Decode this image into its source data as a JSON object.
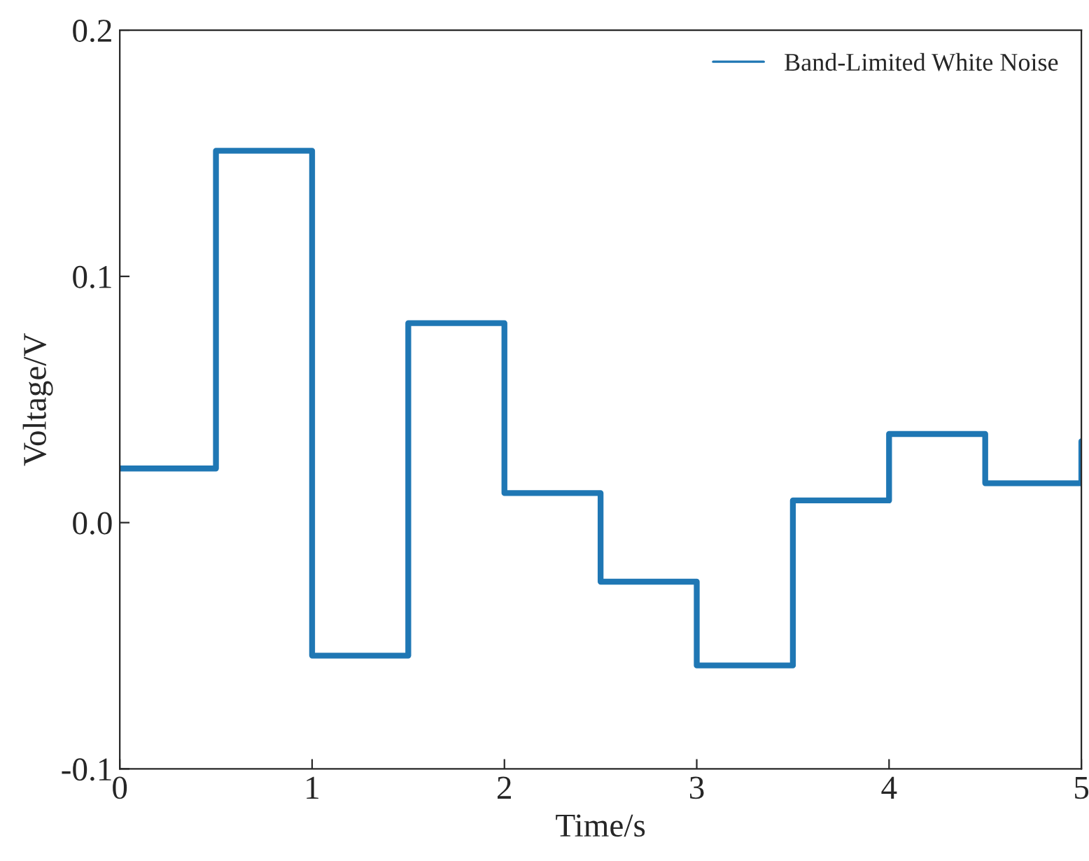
{
  "chart_data": {
    "type": "step",
    "xlabel": "Time/s",
    "ylabel": "Voltage/V",
    "x": [
      0,
      0.5,
      1,
      1.5,
      2,
      2.5,
      3,
      3.5,
      4,
      4.5,
      5
    ],
    "series": [
      {
        "name": "Band-Limited White Noise",
        "color": "#1f77b4",
        "values": [
          0.022,
          0.151,
          -0.054,
          0.081,
          0.012,
          -0.024,
          -0.058,
          0.009,
          0.036,
          0.016,
          0.033
        ]
      }
    ],
    "xlim": [
      0,
      5
    ],
    "ylim": [
      -0.1,
      0.2
    ],
    "xticks": [
      0,
      1,
      2,
      3,
      4,
      5
    ],
    "yticks": [
      {
        "value": -0.1,
        "label": "-0.1"
      },
      {
        "value": 0,
        "label": "0.0"
      },
      0.1,
      0.2
    ],
    "legend": "top right",
    "grid": false
  }
}
